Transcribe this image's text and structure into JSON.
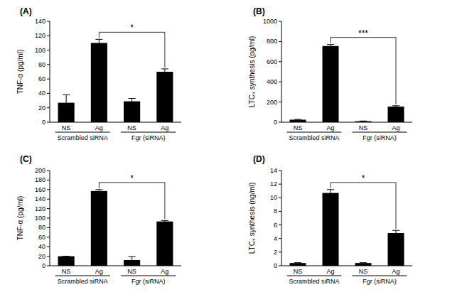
{
  "chart_data": [
    {
      "type": "bar",
      "title": "(A)",
      "y_label": "TNF-α (pg/ml)",
      "categories": [
        "NS",
        "Ag",
        "NS",
        "Ag"
      ],
      "group_labels": [
        "Scrambled siRNA",
        "Fgr (siRNA)"
      ],
      "values": [
        27,
        110,
        29,
        70
      ],
      "errors": [
        11,
        5,
        4,
        4
      ],
      "color": "#000000",
      "ylim": [
        0,
        140
      ],
      "yticks": [
        0,
        20,
        40,
        60,
        80,
        100,
        120,
        140
      ],
      "annotations": [
        {
          "text": "*",
          "from": 1,
          "to": 3
        }
      ]
    },
    {
      "type": "bar",
      "title": "(B)",
      "y_label": "LTC₄ synthesis (pg/ml)",
      "categories": [
        "NS",
        "Ag",
        "NS",
        "Ag"
      ],
      "group_labels": [
        "Scrambled siRNA",
        "Fgr (siRNA)"
      ],
      "values": [
        25,
        755,
        10,
        155
      ],
      "errors": [
        3,
        15,
        2,
        8
      ],
      "color": "#000000",
      "ylim": [
        0,
        1000
      ],
      "yticks": [
        0,
        200,
        400,
        600,
        800,
        1000
      ],
      "annotations": [
        {
          "text": "***",
          "from": 1,
          "to": 3
        }
      ]
    },
    {
      "type": "bar",
      "title": "(C)",
      "y_label": "TNF-α (pg/ml)",
      "categories": [
        "NS",
        "Ag",
        "NS",
        "Ag"
      ],
      "group_labels": [
        "Scrambled siRNA",
        "Fgr (siRNA)"
      ],
      "values": [
        20,
        157,
        12,
        93
      ],
      "errors": [
        0,
        3,
        7,
        2
      ],
      "color": "#000000",
      "ylim": [
        0,
        200
      ],
      "yticks": [
        0,
        20,
        40,
        60,
        80,
        100,
        120,
        140,
        160,
        180,
        200
      ],
      "annotations": [
        {
          "text": "*",
          "from": 1,
          "to": 3
        }
      ]
    },
    {
      "type": "bar",
      "title": "(D)",
      "y_label": "LTC₄ synthesis (ng/ml)",
      "categories": [
        "NS",
        "Ag",
        "NS",
        "Ag"
      ],
      "group_labels": [
        "Scrambled siRNA",
        "Fgr (siRNA)"
      ],
      "values": [
        0.4,
        10.7,
        0.4,
        4.8
      ],
      "errors": [
        0.05,
        0.5,
        0.05,
        0.4
      ],
      "color": "#000000",
      "ylim": [
        0,
        14
      ],
      "yticks": [
        0,
        2,
        4,
        6,
        8,
        10,
        12,
        14
      ],
      "annotations": [
        {
          "text": "*",
          "from": 1,
          "to": 3
        }
      ]
    }
  ]
}
